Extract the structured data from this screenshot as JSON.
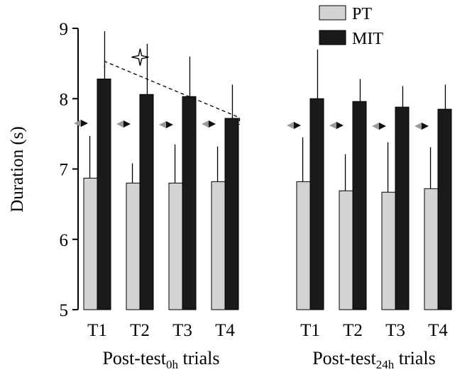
{
  "chart_data": {
    "type": "bar",
    "ylabel": "Duration (s)",
    "ylim": [
      5,
      9
    ],
    "yticks": [
      "5",
      "6",
      "7",
      "8",
      "9"
    ],
    "grid": false,
    "legend": {
      "placement": "top-right",
      "entries": [
        {
          "name": "PT",
          "color": "#d3d3d3"
        },
        {
          "name": "MIT",
          "color": "#1a1a1a"
        }
      ]
    },
    "groups": [
      {
        "title_main": "Post-test",
        "title_sub": "0h",
        "title_tail": " trials",
        "categories": [
          "T1",
          "T2",
          "T3",
          "T4"
        ],
        "series": [
          {
            "name": "PT",
            "values": [
              6.87,
              6.8,
              6.8,
              6.82
            ],
            "errors": [
              0.6,
              0.28,
              0.55,
              0.5
            ]
          },
          {
            "name": "MIT",
            "values": [
              8.28,
              8.06,
              8.03,
              7.72
            ],
            "errors": [
              0.68,
              0.72,
              0.57,
              0.48
            ]
          }
        ],
        "reference_markers": [
          7.65,
          7.64,
          7.63,
          7.64
        ],
        "significance": {
          "from": 0,
          "to": 3,
          "symbol": "star-outline"
        }
      },
      {
        "title_main": "Post-test",
        "title_sub": "24h",
        "title_tail": " trials",
        "categories": [
          "T1",
          "T2",
          "T3",
          "T4"
        ],
        "series": [
          {
            "name": "PT",
            "values": [
              6.82,
              6.69,
              6.67,
              6.72
            ],
            "errors": [
              0.63,
              0.52,
              0.71,
              0.59
            ]
          },
          {
            "name": "MIT",
            "values": [
              8.0,
              7.96,
              7.88,
              7.85
            ],
            "errors": [
              0.7,
              0.32,
              0.3,
              0.35
            ]
          }
        ],
        "reference_markers": [
          7.62,
          7.62,
          7.61,
          7.61
        ]
      }
    ]
  }
}
